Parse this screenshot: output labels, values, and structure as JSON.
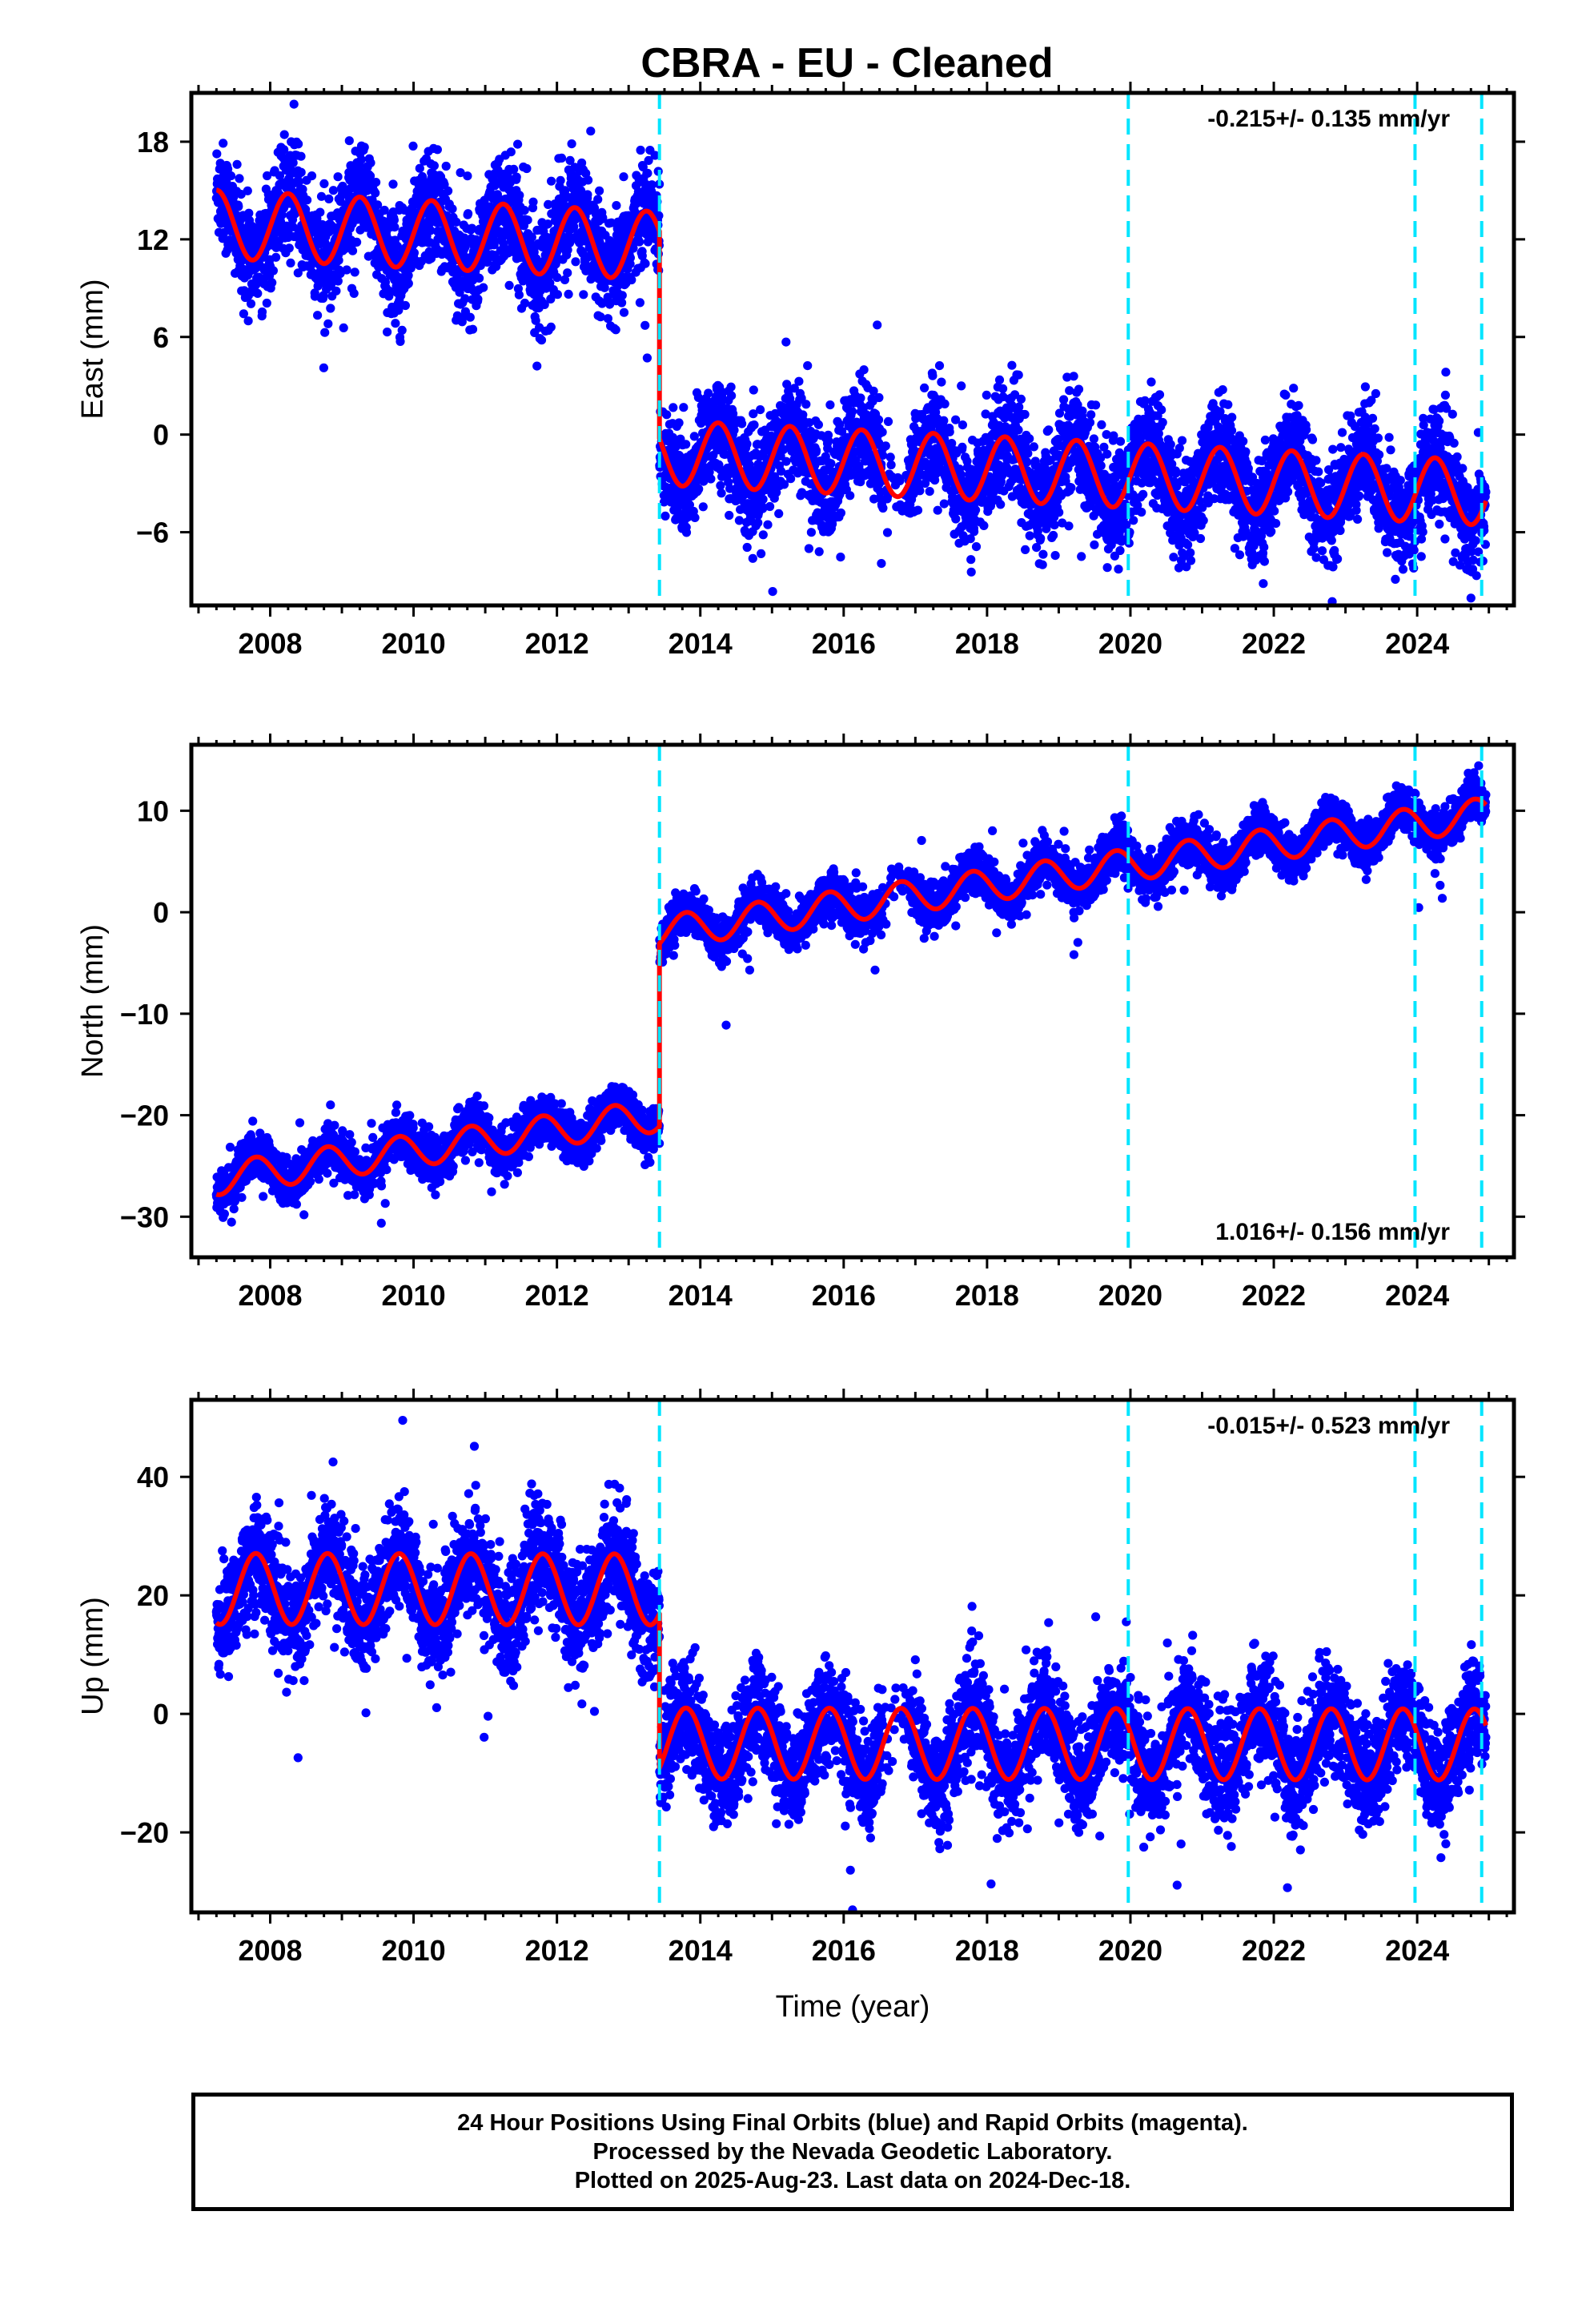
{
  "title": "CBRA  - EU - Cleaned",
  "colors": {
    "points": "#0000ff",
    "model": "#ff0000",
    "events": "#00e5ff",
    "axis": "#000000"
  },
  "caption": [
    "24 Hour Positions Using Final Orbits (blue) and Rapid Orbits (magenta).",
    "Processed by the Nevada Geodetic Laboratory.",
    "Plotted on 2025-Aug-23. Last data on 2024-Dec-18."
  ],
  "chart_data": [
    {
      "type": "scatter",
      "component": "east",
      "ylabel": "East (mm)",
      "xlabel": "",
      "xlim": [
        2006.9,
        2025.35
      ],
      "ylim": [
        -10.5,
        21
      ],
      "xticks": [
        2008,
        2010,
        2012,
        2014,
        2016,
        2018,
        2020,
        2022,
        2024
      ],
      "yticks": [
        -6,
        0,
        6,
        12,
        18
      ],
      "event_lines": [
        2013.43,
        2019.97,
        2023.97,
        2024.9
      ],
      "rate_label": "-0.215+/- 0.135 mm/yr",
      "rate_position": "top-right",
      "model": {
        "before": {
          "offset": 11.6,
          "trend": -0.215,
          "amplitude": 2.1,
          "phase": 0.0
        },
        "after": {
          "offset": -1.1,
          "trend": -0.215,
          "amplitude": 2.0,
          "phase": 0.0
        },
        "step_year": 2013.43,
        "scatter": 1.6
      }
    },
    {
      "type": "scatter",
      "component": "north",
      "ylabel": "North (mm)",
      "xlabel": "",
      "xlim": [
        2006.9,
        2025.35
      ],
      "ylim": [
        -34,
        16.5
      ],
      "xticks": [
        2008,
        2010,
        2012,
        2014,
        2016,
        2018,
        2020,
        2022,
        2024
      ],
      "yticks": [
        -30,
        -20,
        -10,
        0,
        10
      ],
      "event_lines": [
        2013.43,
        2019.97,
        2023.97,
        2024.9
      ],
      "rate_label": "1.016+/- 0.156 mm/yr",
      "rate_position": "bottom-right",
      "model": {
        "before": {
          "offset": -20.0,
          "trend": 1.016,
          "amplitude": 1.6,
          "phase": 0.55
        },
        "after": {
          "offset": -2.0,
          "trend": 1.016,
          "amplitude": 1.6,
          "phase": 0.55
        },
        "step_year": 2013.43,
        "scatter": 1.1
      }
    },
    {
      "type": "scatter",
      "component": "up",
      "ylabel": "Up (mm)",
      "xlabel": "Time (year)",
      "xlim": [
        2006.9,
        2025.35
      ],
      "ylim": [
        -33.5,
        53
      ],
      "xticks": [
        2008,
        2010,
        2012,
        2014,
        2016,
        2018,
        2020,
        2022,
        2024
      ],
      "yticks": [
        -20,
        0,
        20,
        40
      ],
      "event_lines": [
        2013.43,
        2019.97,
        2023.97,
        2024.9
      ],
      "rate_label": "-0.015+/- 0.523 mm/yr",
      "rate_position": "top-right",
      "model": {
        "before": {
          "offset": 21.0,
          "trend": -0.015,
          "amplitude": 6.0,
          "phase": 0.55
        },
        "after": {
          "offset": -5.0,
          "trend": -0.015,
          "amplitude": 6.0,
          "phase": 0.55
        },
        "step_year": 2013.43,
        "scatter": 4.5
      }
    }
  ]
}
